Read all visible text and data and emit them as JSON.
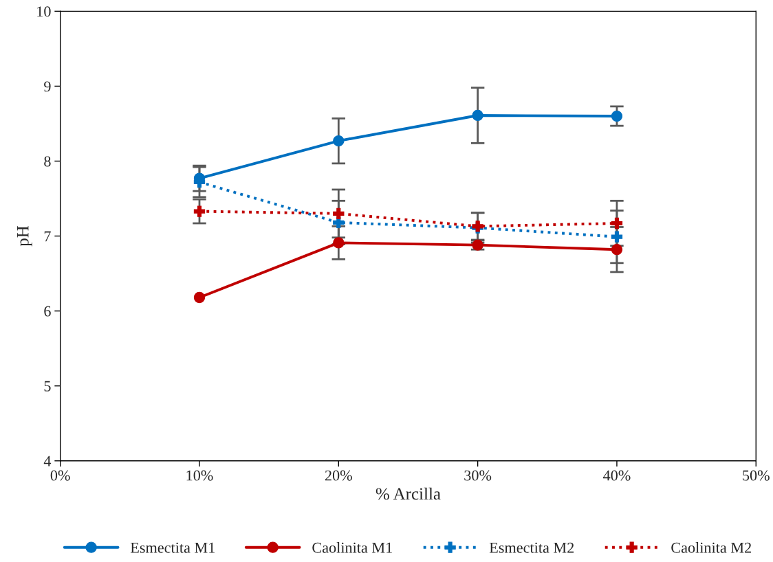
{
  "chart_data": {
    "type": "line",
    "xlabel": "% Arcilla",
    "ylabel": "pH",
    "x": [
      10,
      20,
      30,
      40
    ],
    "xlim": [
      0,
      50
    ],
    "xticks": [
      {
        "value": 0,
        "label": "0%"
      },
      {
        "value": 10,
        "label": "10%"
      },
      {
        "value": 20,
        "label": "20%"
      },
      {
        "value": 30,
        "label": "30%"
      },
      {
        "value": 40,
        "label": "40%"
      },
      {
        "value": 50,
        "label": "50%"
      }
    ],
    "ylim": [
      4,
      10
    ],
    "yticks": [
      4,
      5,
      6,
      7,
      8,
      9,
      10
    ],
    "grid": false,
    "legend": "bottom",
    "series": [
      {
        "name": "Esmectita M1",
        "color": "#0070c0",
        "values": [
          7.77,
          8.27,
          8.61,
          8.6
        ],
        "errors": [
          0.17,
          0.3,
          0.37,
          0.13
        ],
        "marker": "circle",
        "line_style": "solid"
      },
      {
        "name": "Caolinita M1",
        "color": "#c00000",
        "values": [
          6.18,
          6.91,
          6.88,
          6.82
        ],
        "errors": [
          null,
          0.22,
          0.06,
          0.3
        ],
        "marker": "circle",
        "line_style": "solid"
      },
      {
        "name": "Esmectita M2",
        "color": "#0070c0",
        "values": [
          7.72,
          7.18,
          7.11,
          6.99
        ],
        "errors": [
          0.2,
          0.29,
          0.2,
          0.35
        ],
        "marker": "cross",
        "line_style": "dotted"
      },
      {
        "name": "Caolinita M2",
        "color": "#c00000",
        "values": [
          7.33,
          7.3,
          7.13,
          7.17
        ],
        "errors": [
          0.16,
          0.32,
          0.18,
          0.3
        ],
        "marker": "cross",
        "line_style": "dotted"
      }
    ]
  }
}
